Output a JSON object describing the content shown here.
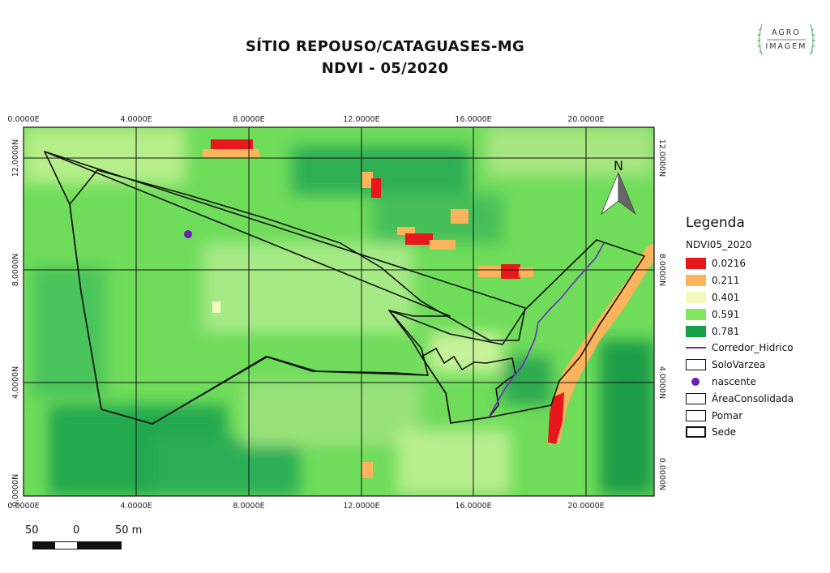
{
  "title": {
    "line1": "SÍTIO REPOUSO/CATAGUASES-MG",
    "line2": "NDVI - 05/2020"
  },
  "logo": {
    "line1": "AGRO",
    "line2": "IMAGEM"
  },
  "north_arrow": {
    "label": "N"
  },
  "graticule": {
    "x_labels": [
      "0.0000E",
      "4.0000E",
      "8.0000E",
      "12.0000E",
      "16.0000E",
      "20.0000E"
    ],
    "y_labels": [
      "12.0000N",
      "8.0000N",
      "4.0000N",
      "0.0000N"
    ]
  },
  "legend": {
    "title": "Legenda",
    "raster_name": "NDVI05_2020",
    "classes": [
      {
        "value": "0.0216",
        "color": "#e8171b"
      },
      {
        "value": "0.211",
        "color": "#fbb35c"
      },
      {
        "value": "0.401",
        "color": "#f5f9bd"
      },
      {
        "value": "0.591",
        "color": "#80e85f"
      },
      {
        "value": "0.781",
        "color": "#17a049"
      }
    ],
    "layers": [
      {
        "name": "Corredor_Hidrico",
        "symbol": "line",
        "color": "#6a2bbd"
      },
      {
        "name": "SoloVarzea",
        "symbol": "outline"
      },
      {
        "name": "nascente",
        "symbol": "point",
        "color": "#6a1fb5"
      },
      {
        "name": "ÁreaConsolidada",
        "symbol": "outline"
      },
      {
        "name": "Pomar",
        "symbol": "outline"
      },
      {
        "name": "Sede",
        "symbol": "outline-thick"
      }
    ]
  },
  "scale_bar": {
    "labels": [
      "50",
      "0",
      "50 m"
    ]
  }
}
